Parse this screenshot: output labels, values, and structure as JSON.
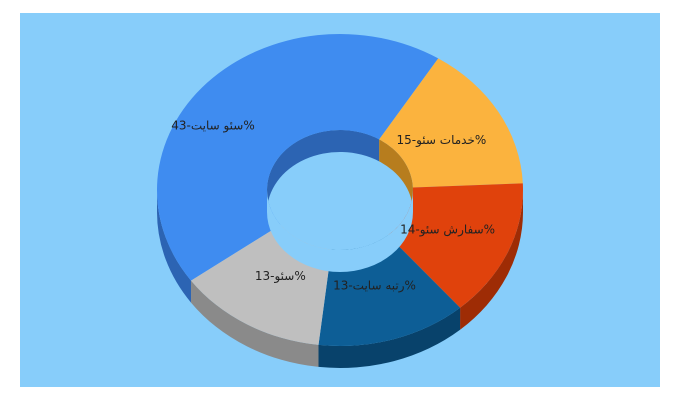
{
  "chart_data": {
    "type": "pie",
    "style": "3d-donut",
    "slices": [
      {
        "label": "سئو سایت",
        "value": 43,
        "display": "سئو سایت-43%",
        "color": "#3f8cf0",
        "side": "#2c64b3"
      },
      {
        "label": "خدمات سئو",
        "value": 15,
        "display": "خدمات سئو-15%",
        "color": "#fbb33e",
        "side": "#b77d1e"
      },
      {
        "label": "سفارش سئو",
        "value": 14,
        "display": "سفارش سئو-14%",
        "color": "#e0420c",
        "side": "#9e2c05"
      },
      {
        "label": "رتبه سایت",
        "value": 13,
        "display": "رتبه سایت-13%",
        "color": "#0d5e96",
        "side": "#08426b"
      },
      {
        "label": "سئو",
        "value": 13,
        "display": "سئو-13%",
        "color": "#bfbfbf",
        "side": "#8a8a8a"
      }
    ]
  }
}
